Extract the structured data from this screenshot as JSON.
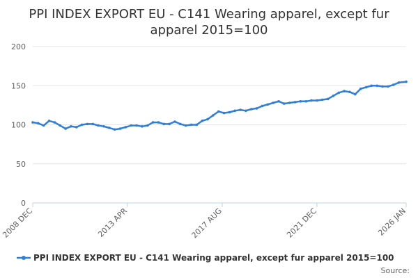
{
  "chart_data": {
    "type": "line",
    "title_lines": [
      "PPI INDEX EXPORT EU - C141 Wearing apparel, except fur",
      "apparel 2015=100"
    ],
    "xlabel": "",
    "ylabel": "",
    "ylim": [
      0,
      200
    ],
    "yticks": [
      0,
      50,
      100,
      150,
      200
    ],
    "xlim": [
      "2008-12",
      "2026-01"
    ],
    "xticks": [
      {
        "date": "2008-12",
        "label": "2008 DEC"
      },
      {
        "date": "2013-04",
        "label": "2013 APR"
      },
      {
        "date": "2017-08",
        "label": "2017 AUG"
      },
      {
        "date": "2021-12",
        "label": "2021 DEC"
      },
      {
        "date": "2026-01",
        "label": "2026 JAN"
      }
    ],
    "grid": true,
    "legend_position": "bottom",
    "series": [
      {
        "name": "PPI INDEX EXPORT EU - C141 Wearing apparel, except fur apparel 2015=100",
        "color": "#2f7ed8",
        "points": [
          [
            "2008-12",
            103
          ],
          [
            "2009-03",
            102
          ],
          [
            "2009-06",
            99
          ],
          [
            "2009-09",
            105
          ],
          [
            "2009-12",
            103
          ],
          [
            "2010-03",
            99
          ],
          [
            "2010-06",
            95
          ],
          [
            "2010-09",
            98
          ],
          [
            "2010-12",
            97
          ],
          [
            "2011-03",
            100
          ],
          [
            "2011-06",
            101
          ],
          [
            "2011-09",
            101
          ],
          [
            "2011-12",
            99
          ],
          [
            "2012-03",
            98
          ],
          [
            "2012-06",
            96
          ],
          [
            "2012-09",
            94
          ],
          [
            "2012-12",
            95
          ],
          [
            "2013-03",
            97
          ],
          [
            "2013-06",
            99
          ],
          [
            "2013-09",
            99
          ],
          [
            "2013-12",
            98
          ],
          [
            "2014-03",
            99
          ],
          [
            "2014-06",
            103
          ],
          [
            "2014-09",
            103
          ],
          [
            "2014-12",
            101
          ],
          [
            "2015-03",
            101
          ],
          [
            "2015-06",
            104
          ],
          [
            "2015-09",
            101
          ],
          [
            "2015-12",
            99
          ],
          [
            "2016-03",
            100
          ],
          [
            "2016-06",
            100
          ],
          [
            "2016-09",
            105
          ],
          [
            "2016-12",
            107
          ],
          [
            "2017-03",
            112
          ],
          [
            "2017-06",
            117
          ],
          [
            "2017-09",
            115
          ],
          [
            "2017-12",
            116
          ],
          [
            "2018-03",
            118
          ],
          [
            "2018-06",
            119
          ],
          [
            "2018-09",
            118
          ],
          [
            "2018-12",
            120
          ],
          [
            "2019-03",
            121
          ],
          [
            "2019-06",
            124
          ],
          [
            "2019-09",
            126
          ],
          [
            "2019-12",
            128
          ],
          [
            "2020-03",
            130
          ],
          [
            "2020-06",
            127
          ],
          [
            "2020-09",
            128
          ],
          [
            "2020-12",
            129
          ],
          [
            "2021-03",
            130
          ],
          [
            "2021-06",
            130
          ],
          [
            "2021-09",
            131
          ],
          [
            "2021-12",
            131
          ],
          [
            "2022-03",
            132
          ],
          [
            "2022-06",
            133
          ],
          [
            "2022-09",
            137
          ],
          [
            "2022-12",
            141
          ],
          [
            "2023-03",
            143
          ],
          [
            "2023-06",
            142
          ],
          [
            "2023-09",
            139
          ],
          [
            "2023-12",
            146
          ],
          [
            "2024-03",
            148
          ],
          [
            "2024-06",
            150
          ],
          [
            "2024-09",
            150
          ],
          [
            "2024-12",
            149
          ],
          [
            "2025-03",
            149
          ],
          [
            "2025-06",
            151
          ],
          [
            "2025-09",
            154
          ],
          [
            "2026-01",
            155
          ]
        ]
      }
    ]
  },
  "legend": {
    "label": "PPI INDEX EXPORT EU - C141 Wearing apparel, except fur apparel 2015=100"
  },
  "credits": {
    "text": "Source:"
  }
}
